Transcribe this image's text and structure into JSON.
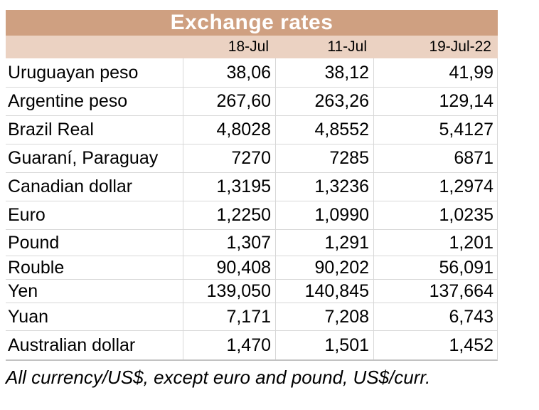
{
  "chart_data": {
    "type": "table",
    "title": "Exchange rates",
    "columns": [
      "18-Jul",
      "11-Jul",
      "19-Jul-22"
    ],
    "rows": [
      {
        "name": "Uruguayan peso",
        "values": [
          "38,06",
          "38,12",
          "41,99"
        ]
      },
      {
        "name": "Argentine peso",
        "values": [
          "267,60",
          "263,26",
          "129,14"
        ]
      },
      {
        "name": "Brazil Real",
        "values": [
          "4,8028",
          "4,8552",
          "5,4127"
        ]
      },
      {
        "name": "Guaraní, Paraguay",
        "values": [
          "7270",
          "7285",
          "6871"
        ]
      },
      {
        "name": "Canadian dollar",
        "values": [
          "1,3195",
          "1,3236",
          "1,2974"
        ]
      },
      {
        "name": "Euro",
        "values": [
          "1,2250",
          "1,0990",
          "1,0235"
        ]
      },
      {
        "name": "Pound",
        "values": [
          "1,307",
          "1,291",
          "1,201"
        ]
      },
      {
        "name": "Rouble",
        "values": [
          "90,408",
          "90,202",
          "56,091"
        ]
      },
      {
        "name": "Yen",
        "values": [
          "139,050",
          "140,845",
          "137,664"
        ]
      },
      {
        "name": "Yuan",
        "values": [
          "7,171",
          "7,208",
          "6,743"
        ]
      },
      {
        "name": "Australian dollar",
        "values": [
          "1,470",
          "1,501",
          "1,452"
        ]
      }
    ],
    "footnote": "All currency/US$, except euro and pound, US$/curr."
  },
  "colors": {
    "title_bg": "#cfa081",
    "title_text": "#ffffff",
    "subheader_bg": "#ebd2c2",
    "border": "#d8d8d8",
    "body_text": "#000000"
  }
}
